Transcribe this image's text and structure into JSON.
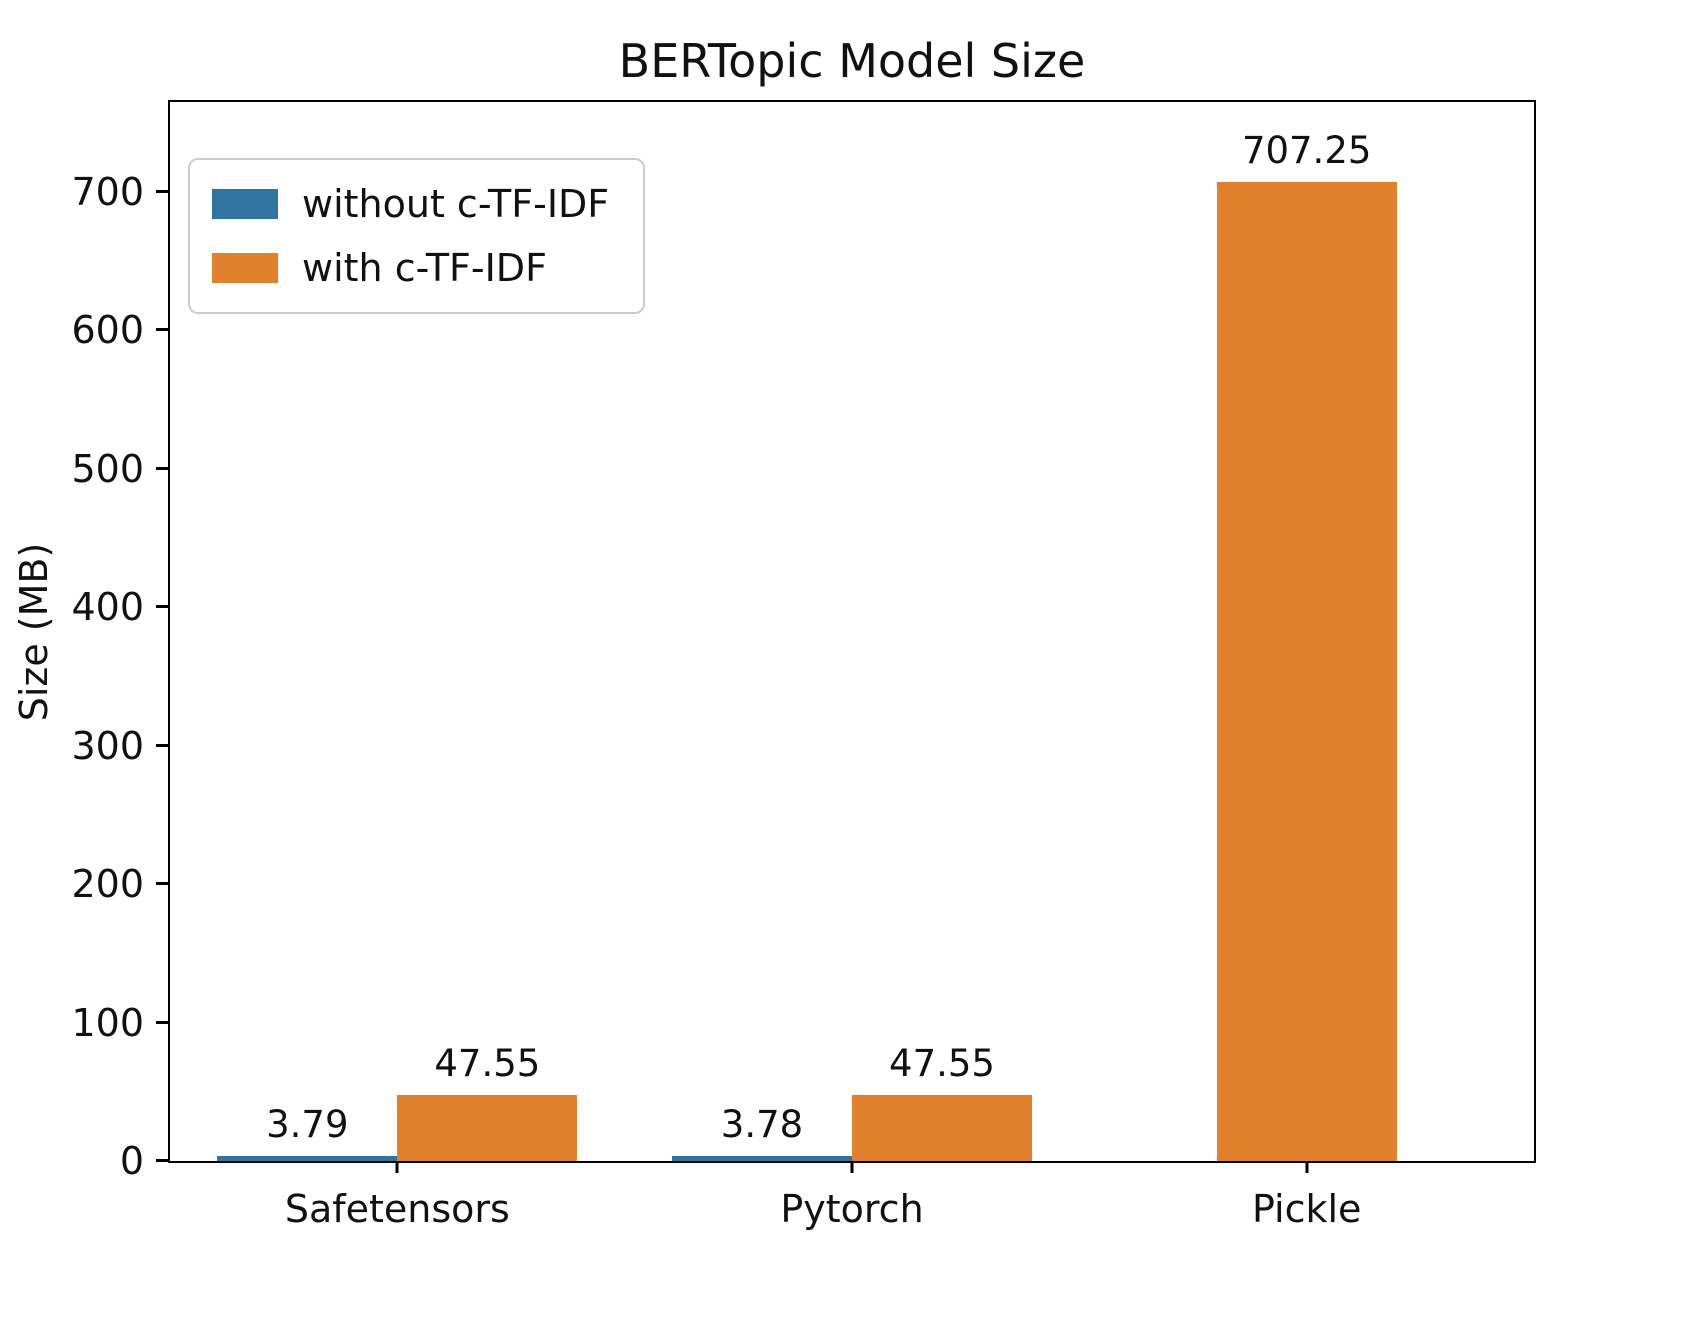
{
  "chart_data": {
    "type": "bar",
    "title": "BERTopic Model Size",
    "xlabel": "",
    "ylabel": "Size (MB)",
    "categories": [
      "Safetensors",
      "Pytorch",
      "Pickle"
    ],
    "series": [
      {
        "name": "without c-TF-IDF",
        "color": "#3274a1",
        "values": [
          3.79,
          3.78,
          null
        ]
      },
      {
        "name": "with c-TF-IDF",
        "color": "#e1812c",
        "values": [
          47.55,
          47.55,
          707.25
        ]
      }
    ],
    "yticks": [
      0,
      100,
      200,
      300,
      400,
      500,
      600,
      700
    ],
    "ylim": [
      0,
      765
    ],
    "grid": false,
    "legend_position": "upper left"
  }
}
